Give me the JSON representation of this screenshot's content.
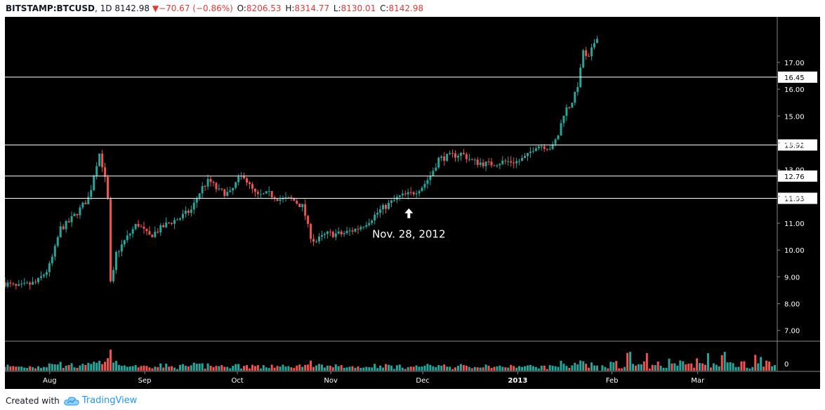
{
  "header": {
    "symbol": "BITSTAMP:BTCUSD",
    "interval": "1D",
    "last": "8142.98",
    "change": "−70.67 (−0.86%)",
    "open_label": "O:",
    "open": "8206.53",
    "high_label": "H:",
    "high": "8314.77",
    "low_label": "L:",
    "low": "8130.01",
    "close_label": "C:",
    "close": "8142.98"
  },
  "footer": {
    "created_with": "Created with",
    "brand": "TradingView"
  },
  "colors": {
    "background": "#000000",
    "up": "#26a69a",
    "down": "#ef5350",
    "level_line": "#ffffff",
    "axis_text": "#ffffff",
    "brand": "#2196f3"
  },
  "chart_data": {
    "type": "candlestick",
    "y_axis": {
      "ticks": [
        "7.00",
        "8.00",
        "9.00",
        "10.00",
        "11.00",
        "12.00",
        "13.00",
        "14.00",
        "15.00",
        "16.00",
        "17.00"
      ],
      "range": [
        6.6,
        18.7
      ]
    },
    "x_axis": {
      "labels": [
        {
          "text": "Aug",
          "pos": 0.058
        },
        {
          "text": "Sep",
          "pos": 0.181
        },
        {
          "text": "Oct",
          "pos": 0.301
        },
        {
          "text": "Nov",
          "pos": 0.422
        },
        {
          "text": "Dec",
          "pos": 0.541
        },
        {
          "text": "2013",
          "pos": 0.664
        },
        {
          "text": "Feb",
          "pos": 0.786
        },
        {
          "text": "Mar",
          "pos": 0.897
        }
      ]
    },
    "levels": [
      {
        "value": 16.45,
        "label": "16.45"
      },
      {
        "value": 13.92,
        "label": "13.92"
      },
      {
        "value": 12.76,
        "label": "12.76"
      },
      {
        "value": 11.93,
        "label": "11.93"
      }
    ],
    "annotation": {
      "text": "Nov. 28, 2012",
      "x": 0.523,
      "y": 11.4
    },
    "volume_axis_label": "0",
    "price_path": [
      [
        0.0,
        8.8
      ],
      [
        0.02,
        8.6
      ],
      [
        0.045,
        8.8
      ],
      [
        0.06,
        9.3
      ],
      [
        0.068,
        10.0
      ],
      [
        0.075,
        10.8
      ],
      [
        0.085,
        11.0
      ],
      [
        0.1,
        11.5
      ],
      [
        0.113,
        12.0
      ],
      [
        0.12,
        13.0
      ],
      [
        0.126,
        13.6
      ],
      [
        0.132,
        12.9
      ],
      [
        0.137,
        11.8
      ],
      [
        0.141,
        8.2
      ],
      [
        0.146,
        9.8
      ],
      [
        0.16,
        10.4
      ],
      [
        0.175,
        11.0
      ],
      [
        0.19,
        10.5
      ],
      [
        0.2,
        10.7
      ],
      [
        0.215,
        11.0
      ],
      [
        0.23,
        11.2
      ],
      [
        0.245,
        11.5
      ],
      [
        0.258,
        12.3
      ],
      [
        0.268,
        12.6
      ],
      [
        0.28,
        12.2
      ],
      [
        0.295,
        12.1
      ],
      [
        0.305,
        12.6
      ],
      [
        0.313,
        12.8
      ],
      [
        0.32,
        12.4
      ],
      [
        0.33,
        12.0
      ],
      [
        0.345,
        12.1
      ],
      [
        0.36,
        11.9
      ],
      [
        0.375,
        11.9
      ],
      [
        0.39,
        11.6
      ],
      [
        0.398,
        10.6
      ],
      [
        0.405,
        10.3
      ],
      [
        0.42,
        10.6
      ],
      [
        0.44,
        10.6
      ],
      [
        0.46,
        10.8
      ],
      [
        0.475,
        11.1
      ],
      [
        0.49,
        11.5
      ],
      [
        0.505,
        11.8
      ],
      [
        0.515,
        12.0
      ],
      [
        0.53,
        12.1
      ],
      [
        0.545,
        12.4
      ],
      [
        0.555,
        12.8
      ],
      [
        0.565,
        13.4
      ],
      [
        0.58,
        13.5
      ],
      [
        0.595,
        13.6
      ],
      [
        0.61,
        13.3
      ],
      [
        0.63,
        13.2
      ],
      [
        0.65,
        13.3
      ],
      [
        0.668,
        13.3
      ],
      [
        0.68,
        13.5
      ],
      [
        0.69,
        13.9
      ],
      [
        0.7,
        13.9
      ],
      [
        0.712,
        13.8
      ],
      [
        0.72,
        14.3
      ],
      [
        0.728,
        15.2
      ],
      [
        0.735,
        15.4
      ],
      [
        0.742,
        15.8
      ],
      [
        0.748,
        16.5
      ],
      [
        0.752,
        17.5
      ],
      [
        0.758,
        17.0
      ],
      [
        0.765,
        17.6
      ],
      [
        0.77,
        18.0
      ]
    ]
  }
}
